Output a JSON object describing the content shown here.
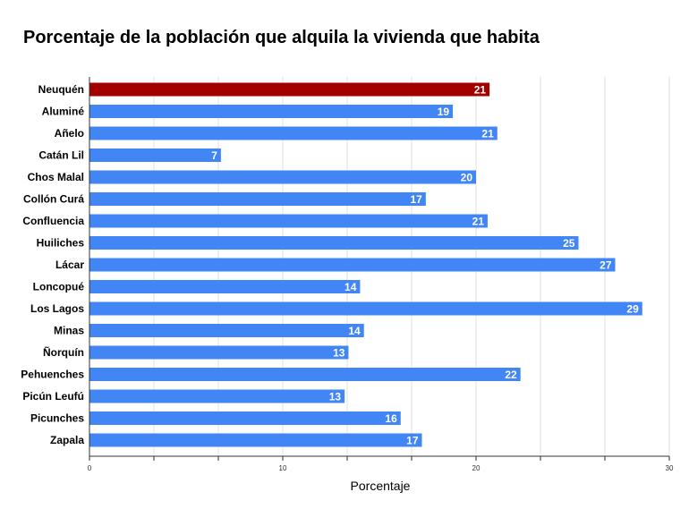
{
  "chart_data": {
    "type": "bar",
    "orientation": "horizontal",
    "title": "Porcentaje de la población que alquila la vivienda que habita",
    "xlabel": "Porcentaje",
    "ylabel": "",
    "xlim": [
      0,
      30
    ],
    "xticks": [
      0,
      10,
      20,
      30
    ],
    "grid": true,
    "legend": "none",
    "categories": [
      "Neuquén",
      "Aluminé",
      "Añelo",
      "Catán Lil",
      "Chos Malal",
      "Collón Curá",
      "Confluencia",
      "Huiliches",
      "Lácar",
      "Loncopué",
      "Los Lagos",
      "Minas",
      "Ñorquín",
      "Pehuenches",
      "Picún Leufú",
      "Picunches",
      "Zapala"
    ],
    "values": [
      20.7,
      18.8,
      21.1,
      6.8,
      20.0,
      17.4,
      20.6,
      25.3,
      27.2,
      14.0,
      28.6,
      14.2,
      13.4,
      22.3,
      13.2,
      16.1,
      17.2
    ],
    "data_labels": [
      "21",
      "19",
      "21",
      "7",
      "20",
      "17",
      "21",
      "25",
      "27",
      "14",
      "29",
      "14",
      "13",
      "22",
      "13",
      "16",
      "17"
    ],
    "colors": {
      "highlight": "#a30000",
      "bar": "#4285f4",
      "highlight_category": "Neuquén"
    }
  }
}
